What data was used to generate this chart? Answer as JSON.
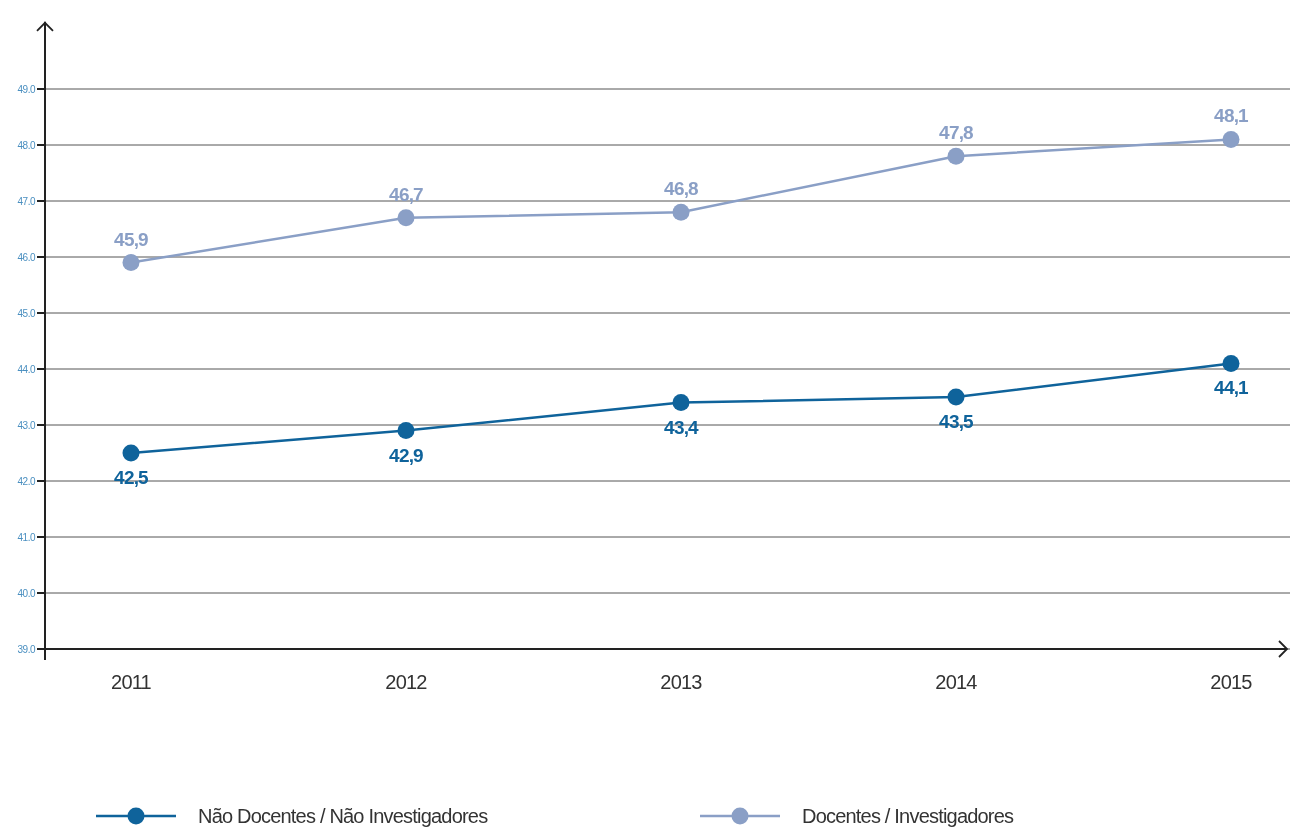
{
  "chart_data": {
    "type": "line",
    "categories": [
      "2011",
      "2012",
      "2013",
      "2014",
      "2015"
    ],
    "series": [
      {
        "name": "Não Docentes / Não Investigadores",
        "color": "#0f639b",
        "values": [
          42.5,
          42.9,
          43.4,
          43.5,
          44.1
        ],
        "value_labels": [
          "42,5",
          "42,9",
          "43,4",
          "43,5",
          "44,1"
        ]
      },
      {
        "name": "Docentes / Investigadores",
        "color": "#8a9fc6",
        "values": [
          45.9,
          46.7,
          46.8,
          47.8,
          48.1
        ],
        "value_labels": [
          "45,9",
          "46,7",
          "46,8",
          "47,8",
          "48,1"
        ]
      }
    ],
    "ylim": [
      39,
      50.2
    ],
    "yticks": [
      {
        "value": 39,
        "label": "39.0"
      },
      {
        "value": 40,
        "label": "40.0"
      },
      {
        "value": 41,
        "label": "41.0"
      },
      {
        "value": 42,
        "label": "42.0"
      },
      {
        "value": 43,
        "label": "43.0"
      },
      {
        "value": 44,
        "label": "44.0"
      },
      {
        "value": 45,
        "label": "45.0"
      },
      {
        "value": 46,
        "label": "46.0"
      },
      {
        "value": 47,
        "label": "47.0"
      },
      {
        "value": 48,
        "label": "48.0"
      },
      {
        "value": 49,
        "label": "49.0"
      }
    ],
    "grid": "y",
    "legend": "bottom",
    "marker": "circle",
    "line_style": "solid"
  }
}
